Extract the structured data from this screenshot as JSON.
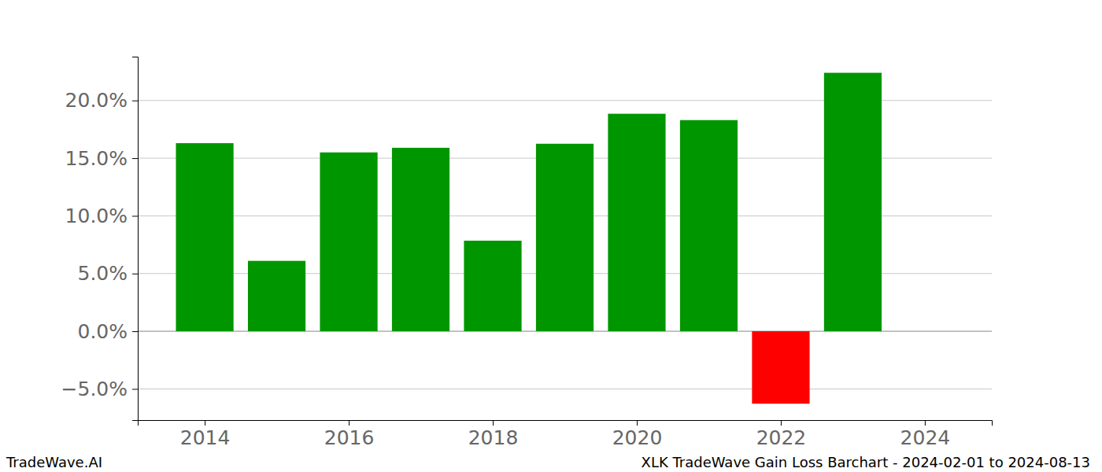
{
  "chart_data": {
    "type": "bar",
    "title": "XLK TradeWave Gain Loss Barchart - 2024-02-01 to 2024-08-13",
    "annotations": [
      "TradeWave.AI"
    ],
    "x": [
      2014,
      2015,
      2016,
      2017,
      2018,
      2019,
      2020,
      2021,
      2022,
      2023
    ],
    "values": [
      16.3,
      6.1,
      15.5,
      15.9,
      7.85,
      16.25,
      18.85,
      18.3,
      -6.28,
      22.4
    ],
    "colors": [
      "#009600",
      "#009600",
      "#009600",
      "#009600",
      "#009600",
      "#009600",
      "#009600",
      "#009600",
      "#ff0000",
      "#009600"
    ],
    "xlim": [
      2013.07,
      2024.93
    ],
    "xticks": [
      2014,
      2016,
      2018,
      2020,
      2022,
      2024
    ],
    "ylim": [
      -7.7,
      23.8
    ],
    "yticks": [
      {
        "value": -5,
        "label": "−5.0%"
      },
      {
        "value": 0,
        "label": "0.0%"
      },
      {
        "value": 5,
        "label": "5.0%"
      },
      {
        "value": 10,
        "label": "10.0%"
      },
      {
        "value": 15,
        "label": "15.0%"
      },
      {
        "value": 20,
        "label": "20.0%"
      }
    ],
    "grid": true
  }
}
